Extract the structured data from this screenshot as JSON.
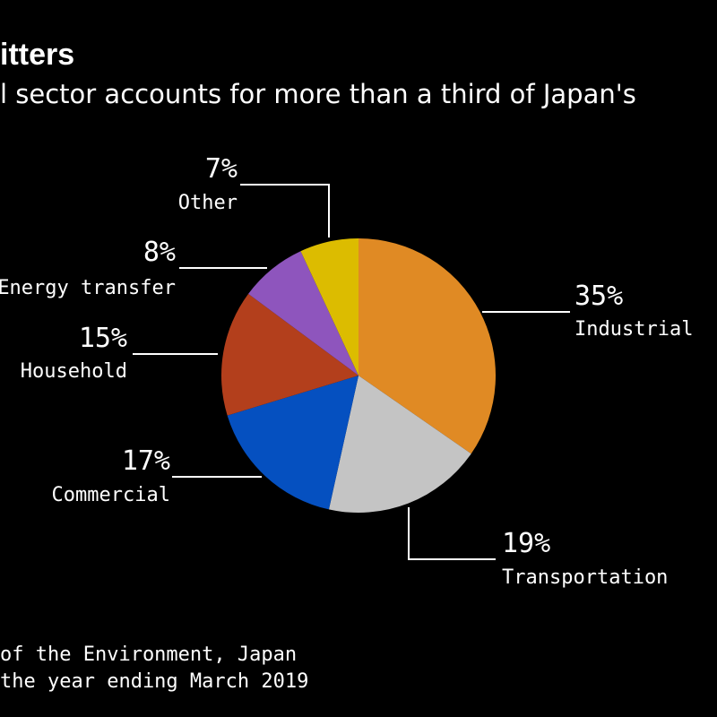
{
  "header": {
    "title": "itters",
    "subtitle": "l sector accounts for more than a third of Japan's"
  },
  "footer": {
    "source": "of the Environment, Japan",
    "note": "the year ending March 2019"
  },
  "chart_data": {
    "type": "pie",
    "unit": "%",
    "slices": [
      {
        "label": "Industrial",
        "value": 35,
        "value_label": "35%",
        "color": "#e08a24"
      },
      {
        "label": "Transportation",
        "value": 19,
        "value_label": "19%",
        "color": "#c4c4c4"
      },
      {
        "label": "Commercial",
        "value": 17,
        "value_label": "17%",
        "color": "#0550c0"
      },
      {
        "label": "Household",
        "value": 15,
        "value_label": "15%",
        "color": "#b33f1c"
      },
      {
        "label": "Energy transfer",
        "value": 8,
        "value_label": "8%",
        "color": "#8e55bd"
      },
      {
        "label": "Other",
        "value": 7,
        "value_label": "7%",
        "color": "#dcbc00"
      }
    ],
    "start": "12 o'clock",
    "direction": "clockwise",
    "legend": "none (direct labels)"
  }
}
